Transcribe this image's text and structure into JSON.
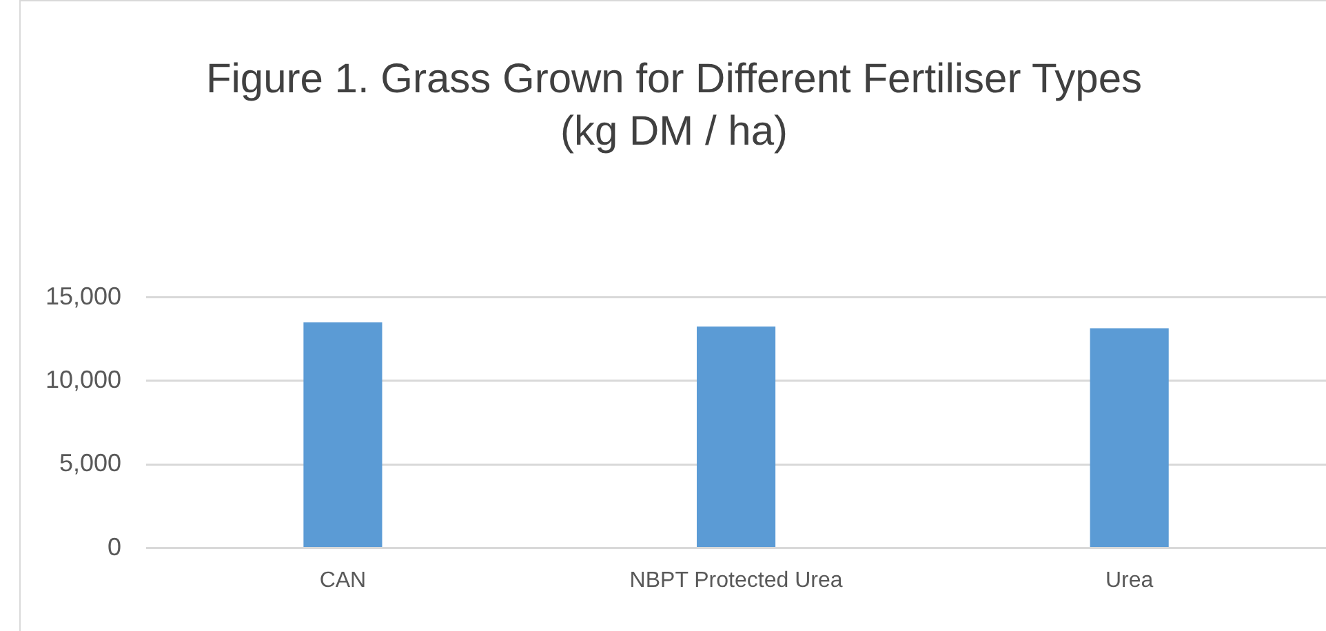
{
  "chart_data": {
    "type": "bar",
    "title": "Figure 1. Grass Grown for Different Fertiliser Types",
    "subtitle": "(kg DM / ha)",
    "categories": [
      "CAN",
      "NBPT Protected Urea",
      "Urea"
    ],
    "values": [
      13500,
      13250,
      13150
    ],
    "color": "#5b9bd5",
    "ylim": [
      0,
      15000
    ],
    "yticks": [
      {
        "value": 0,
        "label": "0"
      },
      {
        "value": 5000,
        "label": "5,000"
      },
      {
        "value": 10000,
        "label": "10,000"
      },
      {
        "value": 15000,
        "label": "15,000"
      }
    ],
    "grid": "y",
    "legend": false
  }
}
